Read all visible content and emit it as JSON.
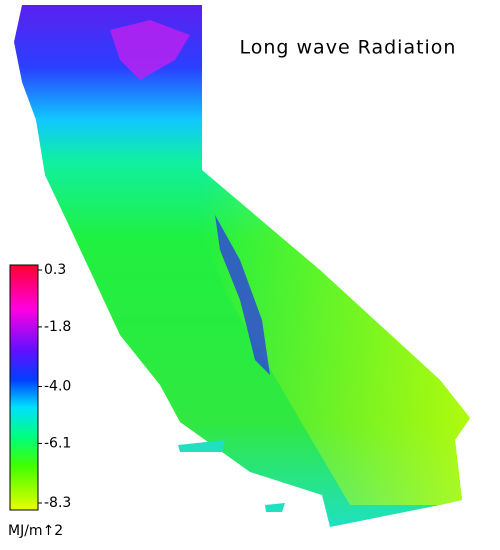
{
  "map": {
    "title": "Long wave Radiation",
    "colorbar": {
      "ticks": [
        0.3,
        -1.8,
        {
          "value": -4,
          "label": "-4.0"
        },
        -6.1,
        -8.3
      ],
      "unit": "MJ/m↑2"
    }
  }
}
